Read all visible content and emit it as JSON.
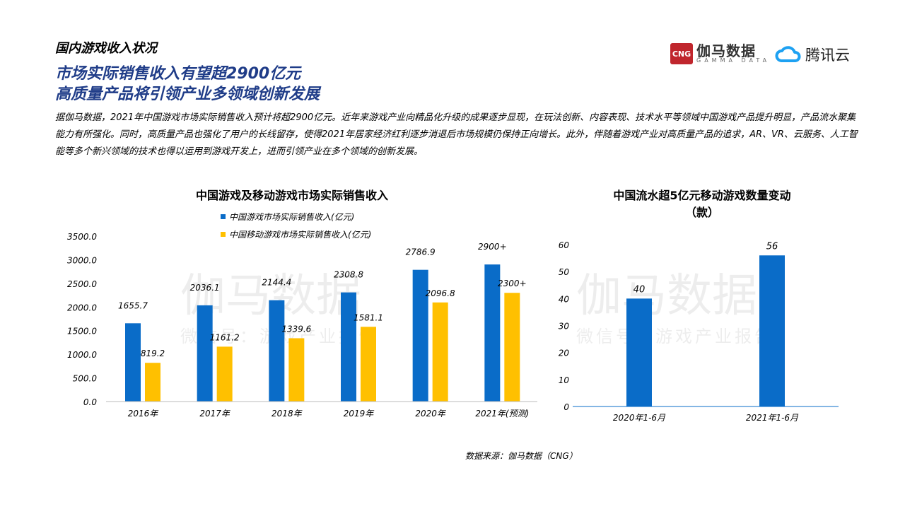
{
  "header": {
    "section": "国内游戏收入状况",
    "title_line1": "市场实际销售收入有望超2900亿元",
    "title_line2": "高质量产品将引领产业多领域创新发展",
    "body": "据伽马数据，2021年中国游戏市场实际销售收入预计将超2900亿元。近年来游戏产业向精品化升级的成果逐步显现，在玩法创新、内容表现、技术水平等领域中国游戏产品提升明显，产品流水聚集能力有所强化。同时，高质量产品也强化了用户的长线留存，使得2021年居家经济红利逐步消退后市场规模仍保持正向增长。此外，伴随着游戏产业对高质量产品的追求，AR、VR、云服务、人工智能等多个新兴领域的技术也得以运用到游戏开发上，进而引领产业在多个领域的创新发展。"
  },
  "logos": {
    "cng_mark": "CNG",
    "cng_name": "伽马数据",
    "cng_en": "GAMMA DATA",
    "tencent_icon": "cloud-icon",
    "tencent_name": "腾讯云"
  },
  "watermark": {
    "main": "伽马数据",
    "sub": "微信号：游戏产业报告"
  },
  "source": "数据来源：伽马数据（CNG）",
  "colors": {
    "blue": "#0a6cc8",
    "yellow": "#ffc000",
    "title": "#1f3c88"
  },
  "chart_data": [
    {
      "type": "bar",
      "title": "中国游戏及移动游戏市场实际销售收入",
      "categories": [
        "2016年",
        "2017年",
        "2018年",
        "2019年",
        "2020年",
        "2021年(预测)"
      ],
      "series": [
        {
          "name": "中国游戏市场实际销售收入(亿元)",
          "values": [
            1655.7,
            2036.1,
            2144.4,
            2308.8,
            2786.9,
            2900
          ],
          "labels": [
            "1655.7",
            "2036.1",
            "2144.4",
            "2308.8",
            "2786.9",
            "2900+"
          ]
        },
        {
          "name": "中国移动游戏市场实际销售收入(亿元)",
          "values": [
            819.2,
            1161.2,
            1339.6,
            1581.1,
            2096.8,
            2300
          ],
          "labels": [
            "819.2",
            "1161.2",
            "1339.6",
            "1581.1",
            "2096.8",
            "2300+"
          ]
        }
      ],
      "yticks": [
        "0.0",
        "500.0",
        "1000.0",
        "1500.0",
        "2000.0",
        "2500.0",
        "3000.0",
        "3500.0"
      ],
      "ylim": [
        0,
        3500
      ],
      "legend": "top",
      "grid": false
    },
    {
      "type": "bar",
      "title_line1": "中国流水超5亿元移动游戏数量变动",
      "title_line2": "（款）",
      "categories": [
        "2020年1-6月",
        "2021年1-6月"
      ],
      "values": [
        40,
        56
      ],
      "labels": [
        "40",
        "56"
      ],
      "yticks": [
        "0",
        "10",
        "20",
        "30",
        "40",
        "50",
        "60"
      ],
      "ylim": [
        0,
        60
      ],
      "grid": false
    }
  ]
}
